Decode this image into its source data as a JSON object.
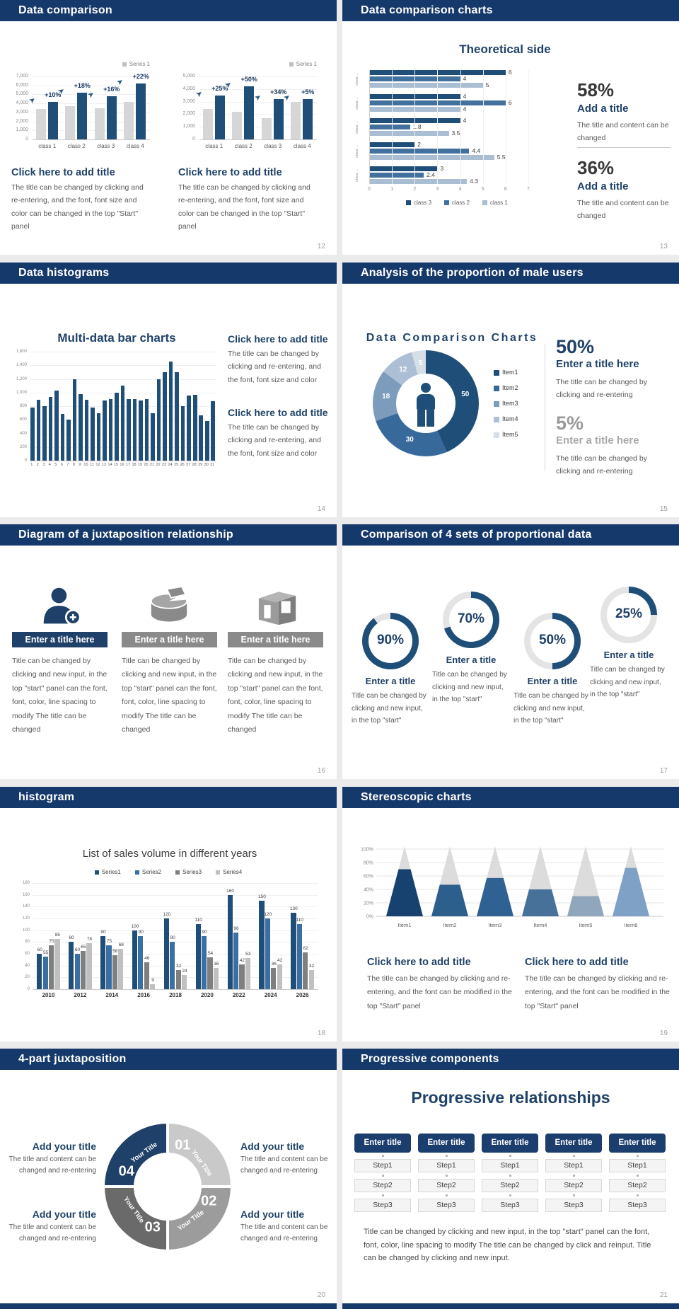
{
  "window": {
    "bg": "#EBEBEB",
    "header_navy": "#16396B",
    "accent_navy": "#1F4E79"
  },
  "slides": {
    "s1": {
      "title": "Data comparison",
      "page": "12",
      "chart_data": [
        {
          "type": "bar",
          "legend": "Series 1",
          "ymax": 7000,
          "yticks": [
            "7,000",
            "6,000",
            "5,000",
            "4,000",
            "3,000",
            "2,000",
            "1,000",
            "0"
          ],
          "categories": [
            "class 1",
            "class 2",
            "class 3",
            "class 4"
          ],
          "series": [
            {
              "name": "base",
              "color": "#D6D6D6",
              "values": [
                3400,
                3700,
                3500,
                4200
              ]
            },
            {
              "name": "Series 1",
              "color": "#1F4E79",
              "values": [
                4200,
                5200,
                4800,
                6200
              ]
            }
          ],
          "annotations": [
            "+10%",
            "+18%",
            "+16%",
            "+22%"
          ]
        },
        {
          "type": "bar",
          "legend": "Series 1",
          "ymax": 5000,
          "yticks": [
            "5,000",
            "4,000",
            "3,000",
            "2,000",
            "1,000",
            "0"
          ],
          "categories": [
            "class 1",
            "class 2",
            "class 3",
            "class 4"
          ],
          "series": [
            {
              "name": "base",
              "color": "#D6D6D6",
              "values": [
                2400,
                2200,
                1700,
                3000
              ]
            },
            {
              "name": "Series 1",
              "color": "#1F4E79",
              "values": [
                3500,
                4200,
                3200,
                3200
              ]
            }
          ],
          "annotations": [
            "+25%",
            "+50%",
            "+34%",
            "+5%"
          ]
        }
      ],
      "block1": {
        "heading": "Click here to add title",
        "body": "The title can be changed by clicking and re-entering, and the font, font size and color can be changed in the top \"Start\" panel"
      },
      "block2": {
        "heading": "Click here to add title",
        "body": "The title can be changed by clicking and re-entering, and the font, font size and color can be changed in the top \"Start\" panel"
      }
    },
    "s2": {
      "title": "Data comparison charts",
      "page": "13",
      "chart_title": "Theoretical side",
      "chart_data": {
        "type": "bar-horizontal",
        "xmax": 7,
        "xticks": [
          "0",
          "1",
          "2",
          "3",
          "4",
          "5",
          "6",
          "7"
        ],
        "group_label": "class…",
        "legend": [
          "class 3",
          "class 2",
          "class 1"
        ],
        "colors": [
          "#1F4E79",
          "#41719C",
          "#A9BDD3"
        ],
        "groups": [
          [
            6,
            4,
            5
          ],
          [
            4,
            6,
            4
          ],
          [
            4,
            1.8,
            3.5
          ],
          [
            2,
            4.4,
            5.5
          ],
          [
            3,
            2.4,
            4.3
          ]
        ]
      },
      "stat1": {
        "pct": "58%",
        "heading": "Add a title",
        "body": "The title and content can be changed"
      },
      "stat2": {
        "pct": "36%",
        "heading": "Add a title",
        "body": "The title and content can be changed"
      }
    },
    "s3": {
      "title": "Data histograms",
      "page": "14",
      "chart_title": "Multi-data bar charts",
      "chart_data": {
        "type": "bar",
        "color": "#1F4E79",
        "ymax": 1600,
        "yticks": [
          "1,600",
          "1,400",
          "1,200",
          "1,000",
          "800",
          "600",
          "400",
          "200",
          "0"
        ],
        "categories": [
          "1",
          "2",
          "3",
          "4",
          "5",
          "6",
          "7",
          "8",
          "9",
          "10",
          "11",
          "12",
          "13",
          "14",
          "15",
          "16",
          "17",
          "18",
          "19",
          "20",
          "21",
          "22",
          "23",
          "24",
          "25",
          "26",
          "27",
          "28",
          "29",
          "30",
          "31"
        ],
        "values": [
          780,
          890,
          800,
          930,
          1030,
          690,
          600,
          1200,
          980,
          890,
          780,
          700,
          880,
          900,
          1000,
          1100,
          900,
          900,
          880,
          900,
          700,
          1200,
          1300,
          1450,
          1300,
          800,
          960,
          970,
          660,
          580,
          870
        ]
      },
      "block1": {
        "heading": "Click here to add title",
        "body": "The title can be changed by clicking and re-entering, and the font, font size and color"
      },
      "block2": {
        "heading": "Click here to add title",
        "body": "The title can be changed by clicking and re-entering, and the font, font size and color"
      }
    },
    "s4": {
      "title": "Analysis of the proportion of male users",
      "page": "15",
      "chart_title": "Data Comparison Charts",
      "chart_data": {
        "type": "pie",
        "values": [
          50,
          30,
          18,
          12,
          5
        ],
        "legend": [
          "Item1",
          "Item2",
          "Item3",
          "Item4",
          "Item5"
        ],
        "colors": [
          "#1F4E79",
          "#38699B",
          "#7D9CBC",
          "#ADBFD4",
          "#D6DEE8"
        ]
      },
      "stat1": {
        "pct": "50%",
        "heading": "Enter a title here",
        "body": "The title can be changed by clicking and re-entering"
      },
      "stat2": {
        "pct": "5%",
        "heading": "Enter a title here",
        "body": "The title can be changed by clicking and re-entering"
      }
    },
    "s5": {
      "title": "Diagram of a juxtaposition relationship",
      "page": "16",
      "columns": [
        {
          "icon": "person-add-icon",
          "title": "Enter a title here",
          "body": "Title can be changed by clicking and new input, in the top \"start\" panel can the font, font, color, line spacing to modify The title can be changed"
        },
        {
          "icon": "cake-chart-icon",
          "title": "Enter a title here",
          "body": "Title can be changed by clicking and new input, in the top \"start\" panel can the font, font, color, line spacing to modify The title can be changed"
        },
        {
          "icon": "building-icon",
          "title": "Enter a title here",
          "body": "Title can be changed by clicking and new input, in the top \"start\" panel can the font, font, color, line spacing to modify The title can be changed"
        }
      ]
    },
    "s6": {
      "title": "Comparison of 4 sets of proportional data",
      "page": "17",
      "rings": [
        {
          "pct": 90,
          "label": "90%",
          "heading": "Enter a title",
          "body": "Title can be changed by clicking and new input, in the top \"start\""
        },
        {
          "pct": 70,
          "label": "70%",
          "heading": "Enter a title",
          "body": "Title can be changed by clicking and new input, in the top \"start\""
        },
        {
          "pct": 50,
          "label": "50%",
          "heading": "Enter a title",
          "body": "Title can be changed by clicking and new input, in the top \"start\""
        },
        {
          "pct": 25,
          "label": "25%",
          "heading": "Enter a title",
          "body": "Title can be changed by clicking and new input, in the top \"start\""
        }
      ]
    },
    "s7": {
      "title": "histogram",
      "page": "18",
      "chart_data": {
        "type": "bar",
        "title": "List of sales volume in different years",
        "categories": [
          "2010",
          "2012",
          "2014",
          "2016",
          "2018",
          "2020",
          "2022",
          "2024",
          "2026"
        ],
        "ymax": 180,
        "yticks": [
          "180",
          "160",
          "140",
          "120",
          "100",
          "80",
          "60",
          "40",
          "20",
          "0"
        ],
        "series": [
          {
            "name": "Series1",
            "color": "#1F4E79",
            "values": [
              60,
              80,
              90,
              100,
              120,
              110,
              160,
              150,
              130
            ]
          },
          {
            "name": "Series2",
            "color": "#3A6FA3",
            "values": [
              55,
              60,
              75,
              90,
              80,
              90,
              96,
              120,
              110
            ]
          },
          {
            "name": "Series3",
            "color": "#7F7F7F",
            "values": [
              75,
              65,
              58,
              46,
              32,
              54,
              42,
              36,
              62
            ]
          },
          {
            "name": "Series4",
            "color": "#C0C0C0",
            "values": [
              85,
              78,
              68,
              9,
              24,
              36,
              53,
              42,
              32
            ]
          }
        ]
      }
    },
    "s8": {
      "title": "Stereoscopic charts",
      "page": "19",
      "chart_data": {
        "type": "cone",
        "categories": [
          "Item1",
          "Item2",
          "Item3",
          "Item4",
          "Item5",
          "Item6"
        ],
        "values_pct": [
          70,
          47,
          57,
          40,
          30,
          72
        ],
        "colors": [
          "#17426F",
          "#2D5F8D",
          "#2F6292",
          "#48719A",
          "#8FA6BC",
          "#7FA1C5"
        ],
        "cone_gray": "#D9D9D9",
        "yticks": [
          "100%",
          "80%",
          "60%",
          "40%",
          "20%",
          "0%"
        ]
      },
      "block1": {
        "heading": "Click here to add title",
        "body": "The title can be changed by clicking and re-entering, and the font can be modified in the top \"Start\" panel"
      },
      "block2": {
        "heading": "Click here to add title",
        "body": "The title can be changed by clicking and re-entering, and the font can be modified in the top \"Start\" panel"
      }
    },
    "s9": {
      "title": "4-part juxtaposition",
      "page": "20",
      "segments": [
        {
          "num": "01",
          "label": "Your Title",
          "color": "#C9C9C9"
        },
        {
          "num": "02",
          "label": "Your Title",
          "color": "#9C9C9C"
        },
        {
          "num": "03",
          "label": "Your Title",
          "color": "#6A6A6A"
        },
        {
          "num": "04",
          "label": "Your Title",
          "color": "#1F4068"
        }
      ],
      "blocks": [
        {
          "heading": "Add your title",
          "body": "The title and content can be changed and re-entering"
        },
        {
          "heading": "Add your title",
          "body": "The title and content can be changed and re-entering"
        },
        {
          "heading": "Add your title",
          "body": "The title and content can be changed and re-entering"
        },
        {
          "heading": "Add your title",
          "body": "The title and content can be changed and re-entering"
        }
      ]
    },
    "s10": {
      "title": "Progressive components",
      "page": "21",
      "main_title": "Progressive relationships",
      "columns": [
        {
          "header": "Enter title",
          "steps": [
            "Step1",
            "Step2",
            "Step3"
          ]
        },
        {
          "header": "Enter title",
          "steps": [
            "Step1",
            "Step2",
            "Step3"
          ]
        },
        {
          "header": "Enter title",
          "steps": [
            "Step1",
            "Step2",
            "Step3"
          ]
        },
        {
          "header": "Enter title",
          "steps": [
            "Step1",
            "Step2",
            "Step3"
          ]
        },
        {
          "header": "Enter title",
          "steps": [
            "Step1",
            "Step2",
            "Step3"
          ]
        }
      ],
      "body": "Title can be changed by clicking and new input, in the top \"start\" panel can the font, font, color, line spacing to modify The title can be changed by click and reinput. Title can be changed by clicking and new input."
    }
  }
}
